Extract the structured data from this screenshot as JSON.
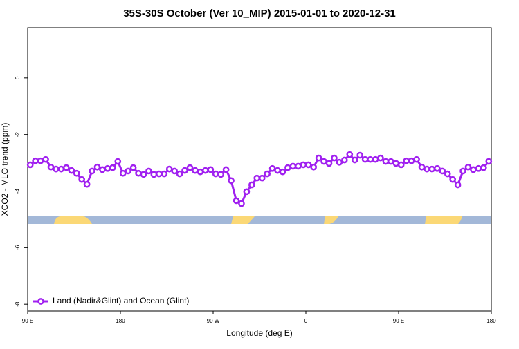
{
  "chart_data": {
    "type": "line",
    "title": "35S-30S October (Ver 10_MIP)   2015-01-01 to 2020-12-31",
    "x_label": "Longitude (deg E)",
    "y_label": "XCO2 - MLO trend (ppm)",
    "xlim": [
      90,
      540
    ],
    "ylim": [
      -8.24,
      1.78
    ],
    "xticks": [
      {
        "value": 90,
        "label": "90 E"
      },
      180,
      {
        "value": 270,
        "label": "90 W"
      },
      {
        "value": 360,
        "label": "0"
      },
      {
        "value": 450,
        "label": "90 E"
      },
      {
        "value": 540,
        "label": "180"
      }
    ],
    "yticks": [
      0,
      -2,
      -4,
      -6,
      -8
    ],
    "legend": "bottom-left",
    "x": [
      92.5,
      97.5,
      102.5,
      107.5,
      112.5,
      117.5,
      122.5,
      127.5,
      132.5,
      137.5,
      142.5,
      147.5,
      152.5,
      157.5,
      162.5,
      167.5,
      172.5,
      177.5,
      182.5,
      187.5,
      192.5,
      197.5,
      202.5,
      207.5,
      212.5,
      217.5,
      222.5,
      227.5,
      232.5,
      237.5,
      242.5,
      247.5,
      252.5,
      257.5,
      262.5,
      267.5,
      272.5,
      277.5,
      282.5,
      287.5,
      292.5,
      297.5,
      302.5,
      307.5,
      312.5,
      317.5,
      322.5,
      327.5,
      332.5,
      337.5,
      342.5,
      347.5,
      352.5,
      357.5,
      362.5,
      367.5,
      372.5,
      377.5,
      382.5,
      387.5,
      392.5,
      397.5,
      402.5,
      407.5,
      412.5,
      417.5,
      422.5,
      427.5,
      432.5,
      437.5,
      442.5,
      447.5,
      452.5,
      457.5,
      462.5,
      467.5,
      472.5,
      477.5,
      482.5,
      487.5,
      492.5,
      497.5,
      502.5,
      507.5,
      512.5,
      517.5,
      522.5,
      527.5,
      532.5,
      537.5
    ],
    "series": [
      {
        "name": "Land (Nadir&Glint) and Ocean (Glint)",
        "color": "#a020f0",
        "values": [
          -3.07,
          -2.93,
          -2.93,
          -2.88,
          -3.15,
          -3.22,
          -3.22,
          -3.17,
          -3.27,
          -3.37,
          -3.59,
          -3.76,
          -3.29,
          -3.15,
          -3.24,
          -3.2,
          -3.17,
          -2.95,
          -3.37,
          -3.29,
          -3.17,
          -3.37,
          -3.41,
          -3.29,
          -3.41,
          -3.39,
          -3.39,
          -3.22,
          -3.29,
          -3.39,
          -3.27,
          -3.17,
          -3.27,
          -3.32,
          -3.27,
          -3.24,
          -3.39,
          -3.41,
          -3.24,
          -3.63,
          -4.34,
          -4.44,
          -4.02,
          -3.78,
          -3.54,
          -3.54,
          -3.39,
          -3.2,
          -3.27,
          -3.32,
          -3.17,
          -3.12,
          -3.12,
          -3.07,
          -3.07,
          -3.15,
          -2.83,
          -2.95,
          -3.02,
          -2.83,
          -2.98,
          -2.9,
          -2.71,
          -2.9,
          -2.73,
          -2.88,
          -2.88,
          -2.88,
          -2.83,
          -2.95,
          -2.95,
          -3.02,
          -3.07,
          -2.93,
          -2.93,
          -2.88,
          -3.15,
          -3.22,
          -3.22,
          -3.2,
          -3.29,
          -3.39,
          -3.59,
          -3.78,
          -3.29,
          -3.15,
          -3.24,
          -3.2,
          -3.17,
          -2.95
        ]
      }
    ]
  }
}
